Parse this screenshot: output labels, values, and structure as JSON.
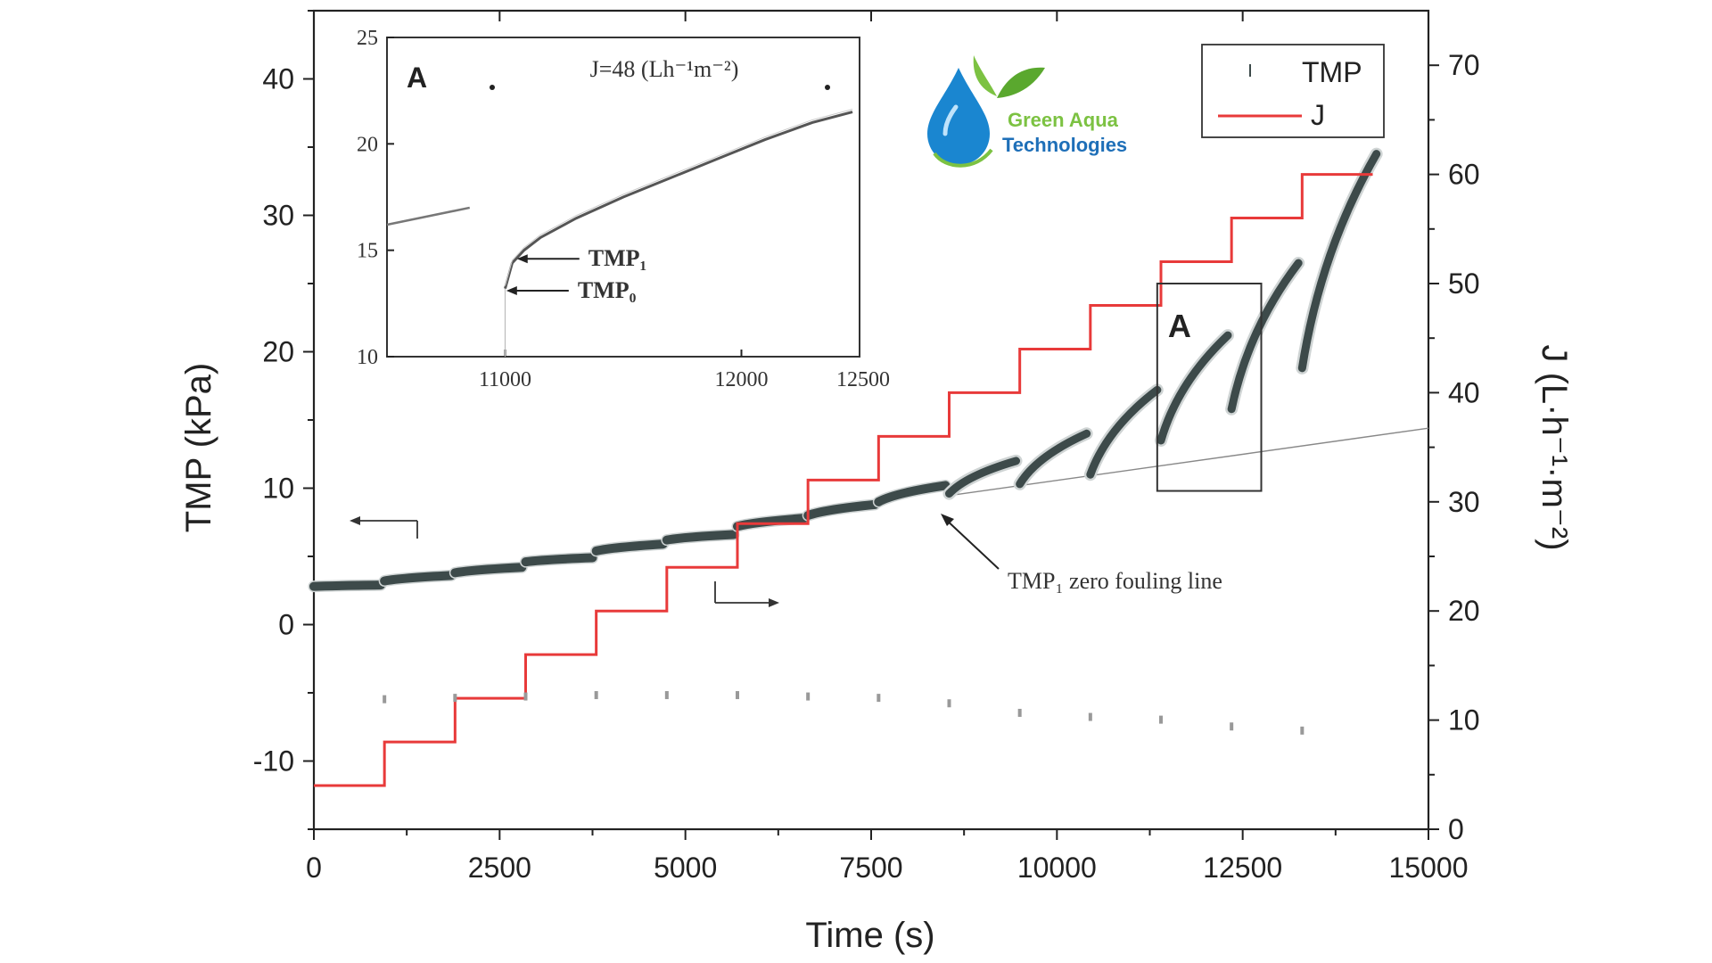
{
  "logo": {
    "line1": "Green Aqua",
    "line2": "Technologies",
    "colors": {
      "green": "#7cc242",
      "blue": "#1e6fb8",
      "drop": "#1a86d0"
    }
  },
  "chart_data": {
    "type": "line",
    "xlabel": "Time (s)",
    "ylabel_left": "TMP (kPa)",
    "ylabel_right": "J (L·h⁻¹·m⁻²)",
    "xlim": [
      0,
      15000
    ],
    "ylim_left": [
      -15,
      45
    ],
    "ylim_right": [
      0,
      75
    ],
    "x_ticks": [
      0,
      2500,
      5000,
      7500,
      10000,
      12500,
      15000
    ],
    "x_tick_labels": [
      "0",
      "2500",
      "5000",
      "7500",
      "10000",
      "12500",
      "15000"
    ],
    "y_left_ticks": [
      -10,
      0,
      10,
      20,
      30,
      40
    ],
    "y_left_tick_labels": [
      "-10",
      "0",
      "10",
      "20",
      "30",
      "40"
    ],
    "y_right_ticks": [
      0,
      10,
      20,
      30,
      40,
      50,
      60,
      70
    ],
    "y_right_tick_labels": [
      "0",
      "10",
      "20",
      "30",
      "40",
      "50",
      "60",
      "70"
    ],
    "legend": {
      "position": "top-right",
      "entries": [
        "TMP",
        "J"
      ]
    },
    "colors": {
      "TMP": "#3d4a4a",
      "J": "#e83a3a"
    },
    "series": [
      {
        "name": "J",
        "axis": "right",
        "style": "step",
        "x": [
          0,
          950,
          1900,
          2850,
          3800,
          4750,
          5700,
          6650,
          7600,
          8550,
          9500,
          10450,
          11400,
          12350,
          13300,
          14250
        ],
        "values": [
          4,
          8,
          12,
          16,
          20,
          24,
          28,
          32,
          36,
          40,
          44,
          48,
          52,
          56,
          60,
          60
        ]
      },
      {
        "name": "TMP",
        "axis": "left",
        "style": "segments",
        "segments": [
          {
            "x": [
              0,
              900
            ],
            "values": [
              2.8,
              2.9
            ]
          },
          {
            "x": [
              950,
              1850
            ],
            "values": [
              3.2,
              3.6
            ]
          },
          {
            "x": [
              1900,
              2800
            ],
            "values": [
              3.8,
              4.2
            ]
          },
          {
            "x": [
              2850,
              3750
            ],
            "values": [
              4.6,
              4.9
            ]
          },
          {
            "x": [
              3800,
              4700
            ],
            "values": [
              5.4,
              5.9
            ]
          },
          {
            "x": [
              4750,
              5650
            ],
            "values": [
              6.2,
              6.6
            ]
          },
          {
            "x": [
              5700,
              6600
            ],
            "values": [
              7.2,
              7.8
            ]
          },
          {
            "x": [
              6650,
              7550
            ],
            "values": [
              8.0,
              8.8
            ]
          },
          {
            "x": [
              7600,
              8500
            ],
            "values": [
              9.0,
              10.2
            ]
          },
          {
            "x": [
              8550,
              9450
            ],
            "values": [
              9.6,
              12.0
            ]
          },
          {
            "x": [
              9500,
              10400
            ],
            "values": [
              10.3,
              14.0
            ]
          },
          {
            "x": [
              10450,
              11350
            ],
            "values": [
              11.0,
              17.2
            ]
          },
          {
            "x": [
              11400,
              12300
            ],
            "values": [
              13.5,
              21.2
            ]
          },
          {
            "x": [
              12350,
              13250
            ],
            "values": [
              15.8,
              26.5
            ]
          },
          {
            "x": [
              13300,
              14300
            ],
            "values": [
              18.8,
              34.5
            ]
          }
        ]
      },
      {
        "name": "TMP_baseline",
        "axis": "left",
        "style": "thin",
        "x": [
          8600,
          15000
        ],
        "values": [
          9.5,
          14.4
        ]
      }
    ],
    "relaxation_points": {
      "x": [
        950,
        1900,
        2850,
        3800,
        4750,
        5700,
        6650,
        7600,
        8550,
        9500,
        10450,
        11400,
        12350,
        13300
      ],
      "values": [
        -5.5,
        -5.4,
        -5.3,
        -5.2,
        -5.2,
        -5.2,
        -5.3,
        -5.4,
        -5.8,
        -6.5,
        -6.8,
        -7.0,
        -7.5,
        -7.8
      ]
    },
    "annotations": {
      "box_label": "A",
      "baseline_label": "TMP₁ zero fouling line",
      "box": {
        "x": [
          11350,
          12750
        ],
        "y": [
          9.8,
          25.0
        ]
      }
    },
    "inset": {
      "label": "A",
      "xlim": [
        10500,
        12500
      ],
      "ylim": [
        10,
        25
      ],
      "x_ticks": [
        11000,
        12000
      ],
      "x_tick_labels": [
        "11000",
        "12000"
      ],
      "extra_x_label": "12500",
      "y_ticks": [
        10,
        15,
        20,
        25
      ],
      "y_tick_labels": [
        "10",
        "15",
        "20",
        "25"
      ],
      "top_label": "J=48 (Lh⁻¹m⁻²)",
      "curve": {
        "x": [
          11000,
          11030,
          11080,
          11150,
          11300,
          11500,
          11700,
          11900,
          12100,
          12300,
          12470
        ],
        "values": [
          13.2,
          14.4,
          15.0,
          15.6,
          16.5,
          17.5,
          18.4,
          19.3,
          20.2,
          21.0,
          21.5
        ]
      },
      "prev_segment": {
        "x": [
          10500,
          10850
        ],
        "values": [
          16.2,
          17.0
        ]
      },
      "arrows": [
        {
          "label": "TMP₁",
          "x": 11050,
          "y": 14.6
        },
        {
          "label": "TMP₀",
          "x": 11005,
          "y": 13.1
        }
      ]
    }
  }
}
